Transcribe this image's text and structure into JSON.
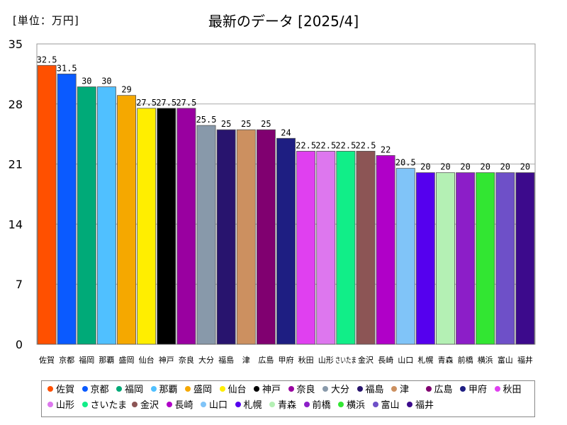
{
  "header": {
    "unit_label": "[単位：万円]",
    "title": "最新のデータ [2025/4]"
  },
  "chart_data": {
    "type": "bar",
    "title": "最新のデータ [2025/4]",
    "ylim": [
      0,
      35
    ],
    "yticks": [
      0,
      7,
      14,
      21,
      28,
      35
    ],
    "grid": true,
    "legend": "bottom",
    "categories": [
      "佐賀",
      "京都",
      "福岡",
      "那覇",
      "盛岡",
      "仙台",
      "神戸",
      "奈良",
      "大分",
      "福島",
      "津",
      "広島",
      "甲府",
      "秋田",
      "山形",
      "さいたま",
      "金沢",
      "長崎",
      "山口",
      "札幌",
      "青森",
      "前橋",
      "横浜",
      "富山",
      "福井"
    ],
    "tick_labels": [
      "佐賀",
      "京都",
      "福岡",
      "那覇",
      "盛岡",
      "仙台",
      "神戸",
      "奈良",
      "大分",
      "福島",
      "津",
      "広島",
      "甲府",
      "秋田",
      "山形",
      "さいたま",
      "金沢",
      "長崎",
      "山口",
      "札幌",
      "青森",
      "前橋",
      "横浜",
      "富山",
      "福井"
    ],
    "values": [
      32.5,
      31.5,
      30,
      30,
      29,
      27.5,
      27.5,
      27.5,
      25.5,
      25,
      25,
      25,
      24,
      22.5,
      22.5,
      22.5,
      22.5,
      22,
      20.5,
      20,
      20,
      20,
      20,
      20,
      20
    ],
    "value_labels": [
      "32.5",
      "31.5",
      "30",
      "30",
      "29",
      "27.5",
      "27.5",
      "27.5",
      "25.5",
      "25",
      "25",
      "25",
      "24",
      "22.5",
      "22.5",
      "22.5",
      "22.5",
      "22",
      "20.5",
      "20",
      "20",
      "20",
      "20",
      "20",
      "20"
    ],
    "colors": [
      "#ff5000",
      "#0a5aff",
      "#00aa78",
      "#50c0ff",
      "#f5a800",
      "#ffee00",
      "#000000",
      "#9900a0",
      "#8899aa",
      "#28146e",
      "#cc9060",
      "#800070",
      "#1e1e82",
      "#e040f0",
      "#dd77ee",
      "#11ee88",
      "#8c5555",
      "#b000c8",
      "#80c4f8",
      "#5500ee",
      "#b4f0b4",
      "#8c1ec8",
      "#32e632",
      "#6e50c8",
      "#3c0a8c"
    ]
  }
}
